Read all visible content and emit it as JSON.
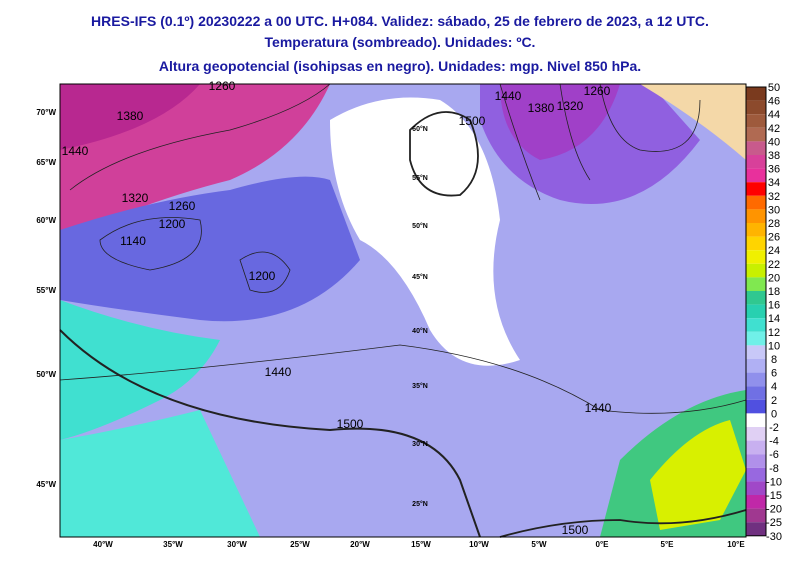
{
  "header": {
    "lines": [
      "HRES-IFS (0.1º) 20230222 a 00 UTC. H+084. Validez: sábado, 25 de febrero de 2023, a 12 UTC.",
      "Temperatura (sombreado). Unidades: ºC.",
      "Altura geopotencial (isohipsas en negro). Unidades: mgp. Nivel 850 hPa."
    ]
  },
  "map": {
    "left_labels": [
      "70°W",
      "65°W",
      "60°W",
      "55°W",
      "50°W",
      "45°W"
    ],
    "bottom_labels": [
      "40°W",
      "35°W",
      "30°W",
      "25°W",
      "20°W",
      "15°W",
      "10°W",
      "5°W",
      "0°E",
      "5°E",
      "10°E"
    ],
    "inner_labels": [
      "60°N",
      "55°N",
      "50°N",
      "45°N",
      "40°N",
      "35°N",
      "30°N",
      "25°N"
    ],
    "contour_labels": [
      "1260",
      "1380",
      "1440",
      "1320",
      "1200",
      "1140",
      "1260",
      "1200",
      "1440",
      "1500",
      "1440",
      "1500",
      "1440",
      "1380",
      "1320",
      "1260",
      "1500"
    ]
  },
  "colorbar": {
    "levels": [
      50,
      46,
      44,
      42,
      40,
      38,
      36,
      34,
      32,
      30,
      28,
      26,
      24,
      22,
      20,
      18,
      16,
      14,
      12,
      10,
      8,
      6,
      4,
      2,
      0,
      -2,
      -4,
      -6,
      -8,
      -10,
      -15,
      -20,
      -25,
      -30
    ],
    "colors": [
      "#7a3a1e",
      "#8c4a2c",
      "#9e5a3c",
      "#b06a52",
      "#c85a8c",
      "#d8409a",
      "#e8309c",
      "#ff0000",
      "#ff6a00",
      "#ff9400",
      "#ffb400",
      "#ffd400",
      "#f0f000",
      "#c8f000",
      "#80e850",
      "#30c890",
      "#28d0b0",
      "#40e0d0",
      "#70f0e8",
      "#c8c8f8",
      "#b0b0f4",
      "#9090ec",
      "#7070e4",
      "#5050e0",
      "#ffffff",
      "#e0d0f4",
      "#c8b0f0",
      "#b090ea",
      "#9868e0",
      "#a048c8",
      "#c028a8",
      "#a03890",
      "#703080"
    ]
  }
}
